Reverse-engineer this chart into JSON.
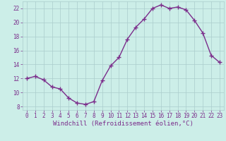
{
  "x": [
    0,
    1,
    2,
    3,
    4,
    5,
    6,
    7,
    8,
    9,
    10,
    11,
    12,
    13,
    14,
    15,
    16,
    17,
    18,
    19,
    20,
    21,
    22,
    23
  ],
  "y": [
    12.0,
    12.3,
    11.8,
    10.8,
    10.5,
    9.2,
    8.5,
    8.3,
    8.7,
    11.7,
    13.8,
    15.0,
    17.6,
    19.3,
    20.5,
    22.0,
    22.5,
    22.0,
    22.2,
    21.8,
    20.3,
    18.5,
    15.3,
    14.3
  ],
  "line_color": "#7b2d8b",
  "marker": "+",
  "markersize": 4,
  "linewidth": 1.0,
  "markeredgewidth": 1.0,
  "bg_color": "#cceee8",
  "grid_color": "#aacccc",
  "xlabel": "Windchill (Refroidissement éolien,°C)",
  "xlabel_color": "#7b2d8b",
  "xlabel_fontsize": 6.5,
  "tick_color": "#7b2d8b",
  "tick_fontsize": 5.5,
  "ylim": [
    7.5,
    23.0
  ],
  "yticks": [
    8,
    10,
    12,
    14,
    16,
    18,
    20,
    22
  ],
  "xlim": [
    -0.5,
    23.5
  ],
  "xticks": [
    0,
    1,
    2,
    3,
    4,
    5,
    6,
    7,
    8,
    9,
    10,
    11,
    12,
    13,
    14,
    15,
    16,
    17,
    18,
    19,
    20,
    21,
    22,
    23
  ]
}
